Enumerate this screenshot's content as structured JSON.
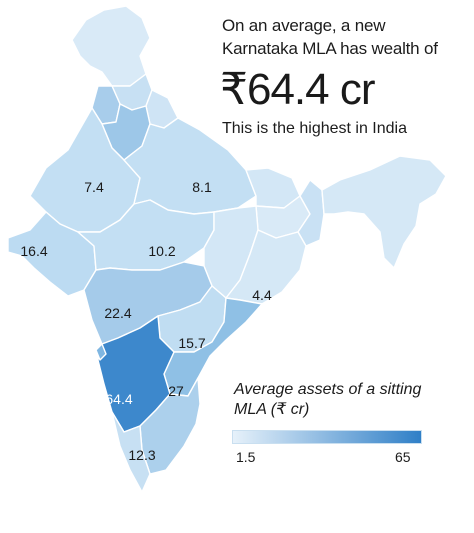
{
  "headline": {
    "line1": "On an average, a new",
    "line2": "Karnataka MLA has wealth of",
    "figure": "₹64.4 cr",
    "note": "This is the highest in India"
  },
  "map": {
    "regions": [
      {
        "id": "jammu-kashmir",
        "value": null,
        "color": "#d9eaf7"
      },
      {
        "id": "himachal",
        "value": null,
        "color": "#c7e0f3"
      },
      {
        "id": "punjab",
        "value": null,
        "color": "#a8cdeb"
      },
      {
        "id": "uttarakhand",
        "value": null,
        "color": "#cfe4f5"
      },
      {
        "id": "haryana",
        "value": null,
        "color": "#9dc7e8"
      },
      {
        "id": "rajasthan",
        "label": "7.4",
        "value": 7.4,
        "color": "#c3dff3"
      },
      {
        "id": "uttar-pradesh",
        "label": "8.1",
        "value": 8.1,
        "color": "#c3dff3"
      },
      {
        "id": "bihar",
        "value": null,
        "color": "#d3e7f6"
      },
      {
        "id": "gujarat",
        "label": "16.4",
        "value": 16.4,
        "color": "#bcdbf2"
      },
      {
        "id": "madhya-pradesh",
        "label": "10.2",
        "value": 10.2,
        "color": "#c3dff3"
      },
      {
        "id": "jharkhand",
        "value": null,
        "color": "#d9eaf7"
      },
      {
        "id": "west-bengal",
        "value": null,
        "color": "#c9e1f4"
      },
      {
        "id": "chhattisgarh",
        "value": null,
        "color": "#d3e7f6"
      },
      {
        "id": "odisha",
        "label": "4.4",
        "value": 4.4,
        "color": "#d5e8f6"
      },
      {
        "id": "maharashtra",
        "label": "22.4",
        "value": 22.4,
        "color": "#a5cbea"
      },
      {
        "id": "telangana",
        "label": "15.7",
        "value": 15.7,
        "color": "#c0ddf2"
      },
      {
        "id": "andhra-pradesh",
        "label": "",
        "value": null,
        "color": "#8fc0e5"
      },
      {
        "id": "karnataka",
        "label": "64.4",
        "value": 64.4,
        "color": "#3d88cc"
      },
      {
        "id": "tamil-nadu",
        "label": "27",
        "value": 27,
        "color": "#acd0ec"
      },
      {
        "id": "kerala",
        "label": "12.3",
        "value": 12.3,
        "color": "#c7e0f3"
      },
      {
        "id": "goa",
        "value": null,
        "color": "#7fb6e1"
      },
      {
        "id": "northeast",
        "value": null,
        "color": "#d5e8f6"
      }
    ]
  },
  "legend": {
    "title": "Average assets of a sitting MLA (₹ cr)",
    "min": "1.5",
    "max": "65",
    "color_min": "#e6f1fa",
    "color_max": "#2f7fc7"
  }
}
